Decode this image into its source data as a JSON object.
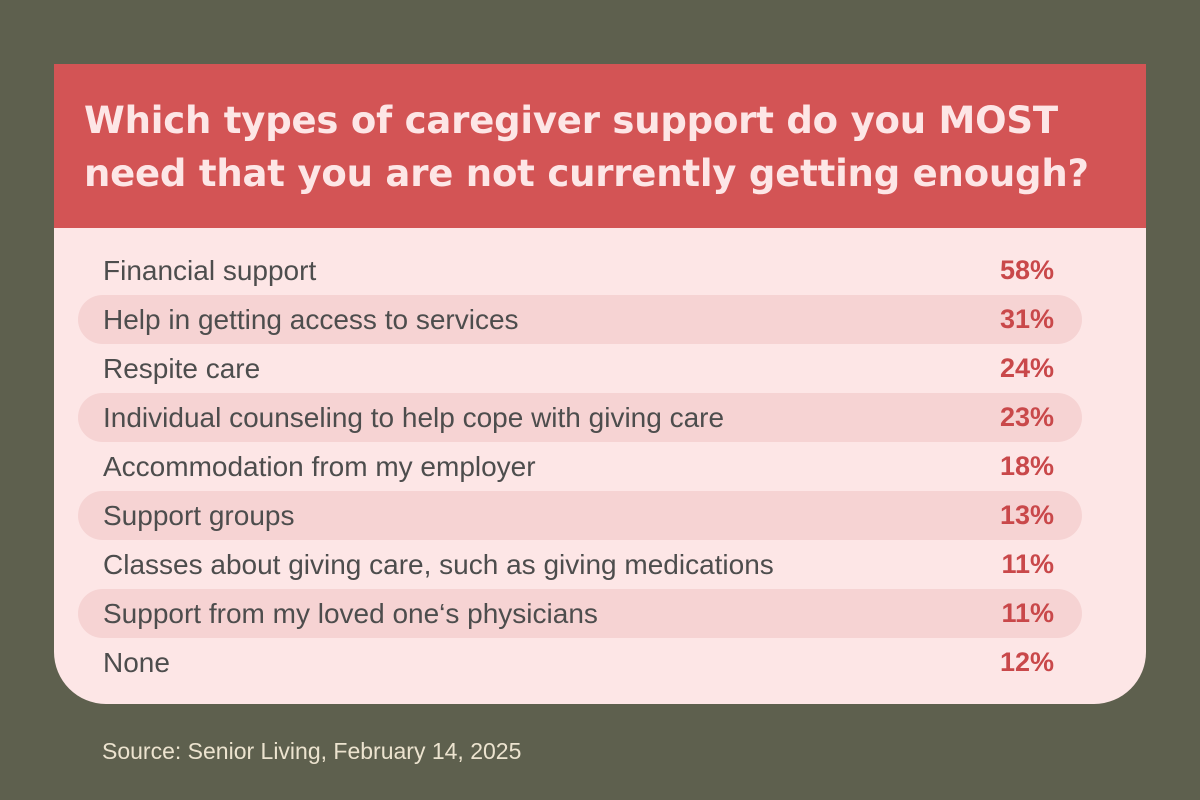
{
  "chart_data": {
    "type": "table",
    "title": "Which types of caregiver support do you MOST need that you are not currently getting enough?",
    "unit": "%",
    "rows": [
      {
        "label": "Financial support",
        "value": 58,
        "display": "58%"
      },
      {
        "label": "Help in getting access to services",
        "value": 31,
        "display": "31%"
      },
      {
        "label": "Respite care",
        "value": 24,
        "display": "24%"
      },
      {
        "label": "Individual counseling to help cope with giving care",
        "value": 23,
        "display": "23%"
      },
      {
        "label": "Accommodation from my employer",
        "value": 18,
        "display": "18%"
      },
      {
        "label": "Support groups",
        "value": 13,
        "display": "13%"
      },
      {
        "label": "Classes about giving care, such as giving medications",
        "value": 11,
        "display": "11%"
      },
      {
        "label": "Support from my loved one‘s physicians",
        "value": 11,
        "display": "11%"
      },
      {
        "label": "None",
        "value": 12,
        "display": "12%"
      }
    ],
    "source": "Source: Senior Living, February 14, 2025"
  },
  "colors": {
    "background": "#5e604e",
    "header": "#d35455",
    "card": "#fde6e6",
    "stripe": "#f6d3d3",
    "value_text": "#c9484a",
    "label_text": "#4d4d4d"
  }
}
